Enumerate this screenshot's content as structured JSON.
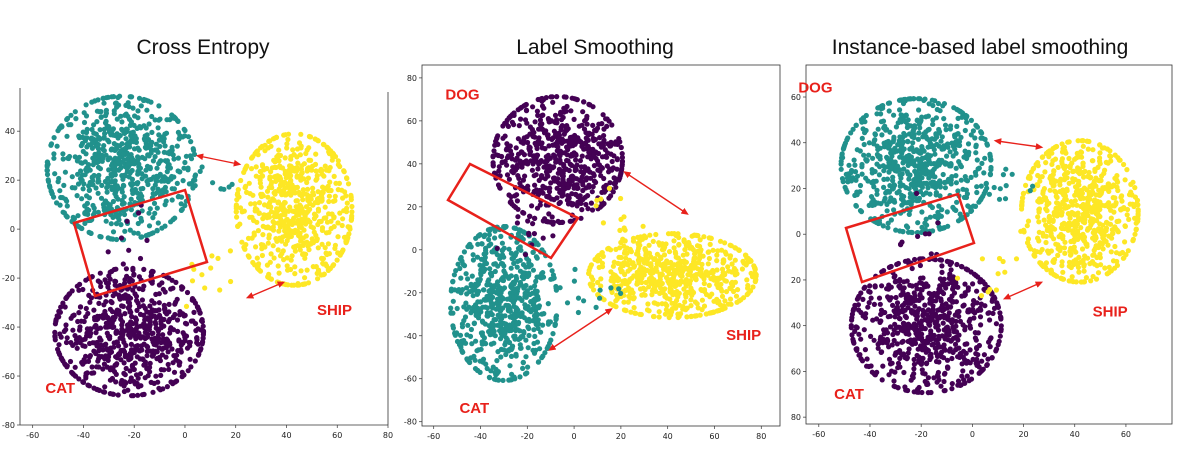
{
  "colors": {
    "purple": "#440154",
    "teal": "#21918c",
    "yellow": "#fde725",
    "annotation": "#e8211b"
  },
  "chart_data": [
    {
      "type": "scatter",
      "title": "Cross Entropy",
      "xlim": [
        -65,
        80
      ],
      "ylim": [
        -80,
        56
      ],
      "xticks": [
        -60,
        -40,
        -20,
        0,
        20,
        40,
        60,
        80
      ],
      "yticks": [
        -80,
        -60,
        -40,
        -20,
        0,
        20,
        40
      ],
      "clusters": [
        {
          "label": "",
          "color": "teal",
          "center": [
            -25,
            25
          ],
          "spread": [
            18,
            18
          ],
          "n": 700
        },
        {
          "label": "SHIP",
          "color": "yellow",
          "center": [
            43,
            8
          ],
          "spread": [
            14,
            19
          ],
          "n": 650
        },
        {
          "label": "CAT",
          "color": "purple",
          "center": [
            -22,
            -42
          ],
          "spread": [
            18,
            16
          ],
          "n": 700
        }
      ],
      "labels": [
        {
          "text": "SHIP",
          "at": [
            52,
            -35
          ]
        },
        {
          "text": "CAT",
          "at": [
            -55,
            -67
          ]
        }
      ]
    },
    {
      "type": "scatter",
      "title": "Label Smoothing",
      "xlim": [
        -65,
        88
      ],
      "ylim": [
        -82,
        86
      ],
      "xticks": [
        -60,
        -40,
        -20,
        0,
        20,
        40,
        60,
        80
      ],
      "yticks": [
        -80,
        -60,
        -40,
        -20,
        0,
        20,
        40,
        60,
        80
      ],
      "clusters": [
        {
          "label": "DOG",
          "color": "purple",
          "center": [
            -7,
            42
          ],
          "spread": [
            17,
            18
          ],
          "n": 650
        },
        {
          "label": "CAT",
          "color": "teal",
          "center": [
            -30,
            -25
          ],
          "spread": [
            14,
            22
          ],
          "n": 650
        },
        {
          "label": "SHIP",
          "color": "yellow",
          "center": [
            42,
            -12
          ],
          "spread": [
            22,
            12
          ],
          "n": 650
        }
      ],
      "labels": [
        {
          "text": "DOG",
          "at": [
            -55,
            70
          ]
        },
        {
          "text": "SHIP",
          "at": [
            65,
            -42
          ]
        },
        {
          "text": "CAT",
          "at": [
            -49,
            -76
          ]
        }
      ]
    },
    {
      "type": "scatter",
      "title": "Instance-based label smoothing",
      "xlim": [
        -65,
        78
      ],
      "ylim": [
        -83,
        74
      ],
      "xticks": [
        -60,
        -40,
        -20,
        0,
        20,
        40,
        60
      ],
      "yticks": [
        -80,
        -60,
        -40,
        -20,
        0,
        20,
        40,
        60
      ],
      "ytick_labels": [
        "80",
        "60",
        "40",
        "20",
        "0",
        "20",
        "40",
        "60"
      ],
      "clusters": [
        {
          "label": "DOG",
          "color": "teal",
          "center": [
            -22,
            30
          ],
          "spread": [
            18,
            18
          ],
          "n": 700
        },
        {
          "label": "SHIP",
          "color": "yellow",
          "center": [
            42,
            10
          ],
          "spread": [
            14,
            19
          ],
          "n": 650
        },
        {
          "label": "CAT",
          "color": "purple",
          "center": [
            -18,
            -40
          ],
          "spread": [
            18,
            18
          ],
          "n": 700
        }
      ],
      "labels": [
        {
          "text": "DOG",
          "at": [
            -68,
            62
          ]
        },
        {
          "text": "SHIP",
          "at": [
            47,
            -36
          ]
        },
        {
          "text": "CAT",
          "at": [
            -54,
            -72
          ]
        }
      ]
    }
  ]
}
